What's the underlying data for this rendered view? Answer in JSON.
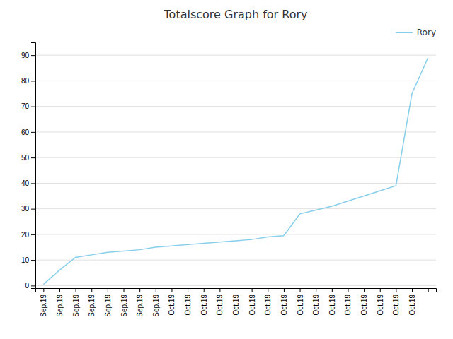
{
  "chart_data": {
    "type": "line",
    "title": "Totalscore Graph for Rory",
    "categories": [
      "Sep.19",
      "Sep.19",
      "Sep.19",
      "Sep.19",
      "Sep.19",
      "Sep.19",
      "Sep.19",
      "Sep.19",
      "Oct.19",
      "Oct.19",
      "Oct.19",
      "Oct.19",
      "Oct.19",
      "Oct.19",
      "Oct.19",
      "Oct.19",
      "Oct.19",
      "Oct.19",
      "Oct.19",
      "Oct.19",
      "Oct.19",
      "Oct.19",
      "Oct.19",
      "Oct.19",
      null
    ],
    "series": [
      {
        "name": "Rory",
        "color": "#87CEEB",
        "values": [
          0.5,
          6,
          11,
          12,
          13,
          13.5,
          14,
          15,
          15.5,
          16,
          16.5,
          17,
          17.5,
          18,
          19,
          19.5,
          28,
          29.5,
          31,
          33,
          35,
          37,
          39,
          75,
          89
        ]
      }
    ],
    "ylim": [
      -1,
      95
    ],
    "yticks": [
      0,
      10,
      20,
      30,
      40,
      50,
      60,
      70,
      80,
      90
    ],
    "grid": true,
    "legend": "upper right"
  }
}
